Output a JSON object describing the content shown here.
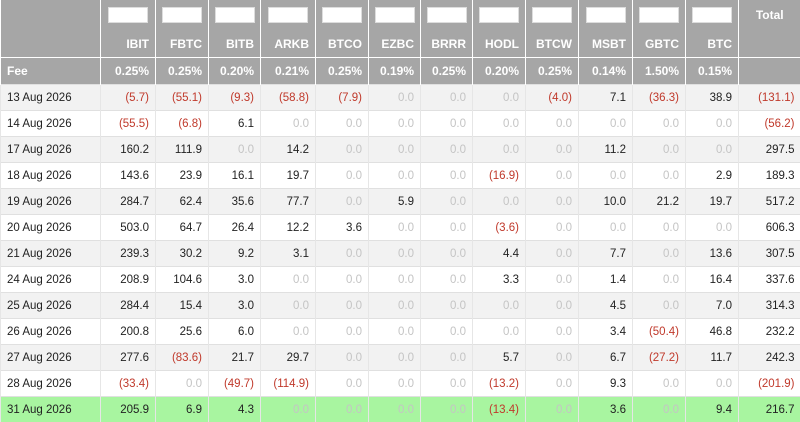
{
  "table": {
    "total_header": "Total",
    "tickers": [
      "IBIT",
      "FBTC",
      "BITB",
      "ARKB",
      "BTCO",
      "EZBC",
      "BRRR",
      "HODL",
      "BTCW",
      "MSBT",
      "GBTC",
      "BTC"
    ],
    "fee_label": "Fee",
    "fees": [
      "0.25%",
      "0.25%",
      "0.20%",
      "0.21%",
      "0.25%",
      "0.19%",
      "0.25%",
      "0.20%",
      "0.25%",
      "0.14%",
      "1.50%",
      "0.15%"
    ],
    "rows": [
      {
        "date": "13 Aug 2026",
        "cells": [
          "(5.7)",
          "(55.1)",
          "(9.3)",
          "(58.8)",
          "(7.9)",
          "0.0",
          "0.0",
          "0.0",
          "(4.0)",
          "7.1",
          "(36.3)",
          "38.9",
          "(131.1)"
        ]
      },
      {
        "date": "14 Aug 2026",
        "cells": [
          "(55.5)",
          "(6.8)",
          "6.1",
          "0.0",
          "0.0",
          "0.0",
          "0.0",
          "0.0",
          "0.0",
          "0.0",
          "0.0",
          "0.0",
          "(56.2)"
        ]
      },
      {
        "date": "17 Aug 2026",
        "cells": [
          "160.2",
          "111.9",
          "0.0",
          "14.2",
          "0.0",
          "0.0",
          "0.0",
          "0.0",
          "0.0",
          "11.2",
          "0.0",
          "0.0",
          "297.5"
        ]
      },
      {
        "date": "18 Aug 2026",
        "cells": [
          "143.6",
          "23.9",
          "16.1",
          "19.7",
          "0.0",
          "0.0",
          "0.0",
          "(16.9)",
          "0.0",
          "0.0",
          "0.0",
          "2.9",
          "189.3"
        ]
      },
      {
        "date": "19 Aug 2026",
        "cells": [
          "284.7",
          "62.4",
          "35.6",
          "77.7",
          "0.0",
          "5.9",
          "0.0",
          "0.0",
          "0.0",
          "10.0",
          "21.2",
          "19.7",
          "517.2"
        ]
      },
      {
        "date": "20 Aug 2026",
        "cells": [
          "503.0",
          "64.7",
          "26.4",
          "12.2",
          "3.6",
          "0.0",
          "0.0",
          "(3.6)",
          "0.0",
          "0.0",
          "0.0",
          "0.0",
          "606.3"
        ]
      },
      {
        "date": "21 Aug 2026",
        "cells": [
          "239.3",
          "30.2",
          "9.2",
          "3.1",
          "0.0",
          "0.0",
          "0.0",
          "4.4",
          "0.0",
          "7.7",
          "0.0",
          "13.6",
          "307.5"
        ]
      },
      {
        "date": "24 Aug 2026",
        "cells": [
          "208.9",
          "104.6",
          "3.0",
          "0.0",
          "0.0",
          "0.0",
          "0.0",
          "3.3",
          "0.0",
          "1.4",
          "0.0",
          "16.4",
          "337.6"
        ]
      },
      {
        "date": "25 Aug 2026",
        "cells": [
          "284.4",
          "15.4",
          "3.0",
          "0.0",
          "0.0",
          "0.0",
          "0.0",
          "0.0",
          "0.0",
          "4.5",
          "0.0",
          "7.0",
          "314.3"
        ]
      },
      {
        "date": "26 Aug 2026",
        "cells": [
          "200.8",
          "25.6",
          "6.0",
          "0.0",
          "0.0",
          "0.0",
          "0.0",
          "0.0",
          "0.0",
          "3.4",
          "(50.4)",
          "46.8",
          "232.2"
        ]
      },
      {
        "date": "27 Aug 2026",
        "cells": [
          "277.6",
          "(83.6)",
          "21.7",
          "29.7",
          "0.0",
          "0.0",
          "0.0",
          "5.7",
          "0.0",
          "6.7",
          "(27.2)",
          "11.7",
          "242.3"
        ]
      },
      {
        "date": "28 Aug 2026",
        "cells": [
          "(33.4)",
          "0.0",
          "(49.7)",
          "(114.9)",
          "0.0",
          "0.0",
          "0.0",
          "(13.2)",
          "0.0",
          "9.3",
          "0.0",
          "0.0",
          "(201.9)"
        ]
      },
      {
        "date": "31 Aug 2026",
        "cells": [
          "205.9",
          "6.9",
          "4.3",
          "0.0",
          "0.0",
          "0.0",
          "0.0",
          "(13.4)",
          "0.0",
          "3.6",
          "0.0",
          "9.4",
          "216.7"
        ]
      }
    ]
  }
}
